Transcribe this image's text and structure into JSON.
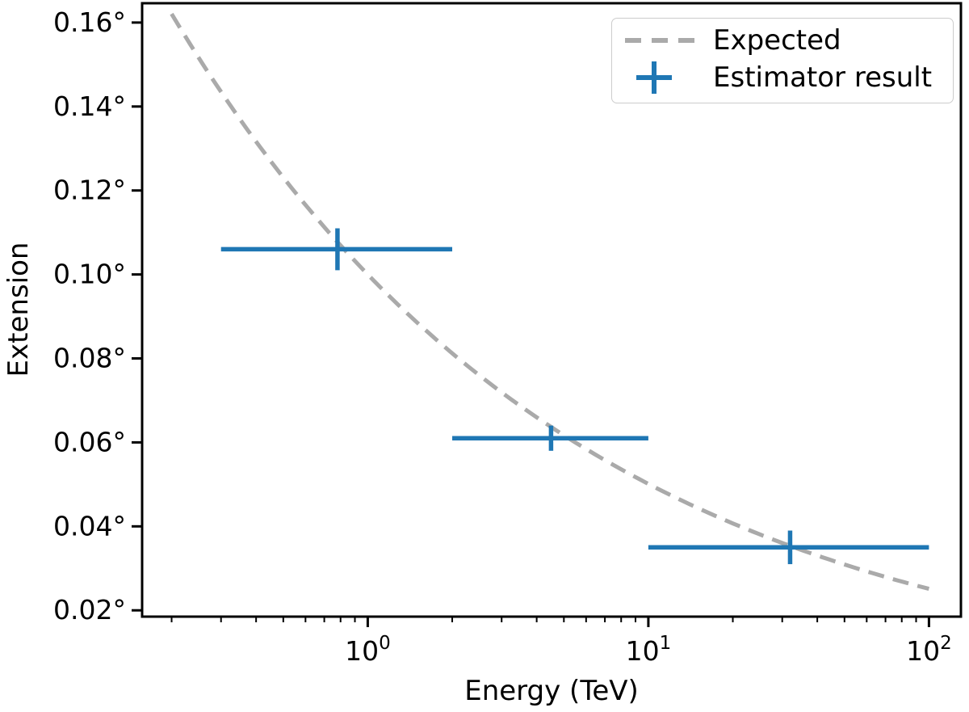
{
  "figure": {
    "background": "#ffffff",
    "axis_color": "#000000",
    "text_color": "#000000"
  },
  "chart_data": {
    "type": "line+errorbar",
    "title": "",
    "xlabel": "Energy (TeV)",
    "ylabel": "Extension",
    "x_scale": "log",
    "y_scale": "linear",
    "grid": false,
    "xlim_tev": [
      0.157,
      130
    ],
    "ylim_deg": [
      0.0185,
      0.1646
    ],
    "x_major_ticks": [
      {
        "value": 1,
        "base": "10",
        "exponent": "0"
      },
      {
        "value": 10,
        "base": "10",
        "exponent": "1"
      },
      {
        "value": 100,
        "base": "10",
        "exponent": "2"
      }
    ],
    "y_ticks": [
      {
        "value": 0.02,
        "label": "0.02°"
      },
      {
        "value": 0.04,
        "label": "0.04°"
      },
      {
        "value": 0.06,
        "label": "0.06°"
      },
      {
        "value": 0.08,
        "label": "0.08°"
      },
      {
        "value": 0.1,
        "label": "0.10°"
      },
      {
        "value": 0.12,
        "label": "0.12°"
      },
      {
        "value": 0.14,
        "label": "0.14°"
      },
      {
        "value": 0.16,
        "label": "0.16°"
      }
    ],
    "legend": {
      "position": "upper right",
      "border_color": "#cccccc",
      "background": "#ffffff"
    },
    "series": [
      {
        "name": "Expected",
        "style": "dashed-line",
        "color": "#aaaaaa",
        "model": {
          "type": "power_law",
          "amplitude_deg_at_1tev": 0.1,
          "index": -0.3,
          "energy_range_tev": [
            0.2,
            100
          ]
        },
        "sampled_points_tev_deg": [
          [
            0.2,
            0.1621
          ],
          [
            0.3,
            0.1435
          ],
          [
            0.5,
            0.1231
          ],
          [
            0.8,
            0.1069
          ],
          [
            1.3,
            0.0924
          ],
          [
            2,
            0.0812
          ],
          [
            3,
            0.0719
          ],
          [
            5,
            0.0617
          ],
          [
            8,
            0.0536
          ],
          [
            13,
            0.0463
          ],
          [
            20,
            0.0407
          ],
          [
            32,
            0.0354
          ],
          [
            50,
            0.0309
          ],
          [
            80,
            0.0269
          ],
          [
            100,
            0.0251
          ]
        ]
      },
      {
        "name": "Estimator result",
        "style": "errorbar-cross",
        "color": "#1f77b4",
        "points": [
          {
            "energy_tev": 0.78,
            "energy_bin_tev": [
              0.3,
              2.0
            ],
            "extension_deg": 0.106,
            "extension_err_deg": 0.005
          },
          {
            "energy_tev": 4.5,
            "energy_bin_tev": [
              2.0,
              10.0
            ],
            "extension_deg": 0.061,
            "extension_err_deg": 0.003
          },
          {
            "energy_tev": 32.0,
            "energy_bin_tev": [
              10.0,
              100.0
            ],
            "extension_deg": 0.035,
            "extension_err_deg": 0.004
          }
        ]
      }
    ]
  }
}
